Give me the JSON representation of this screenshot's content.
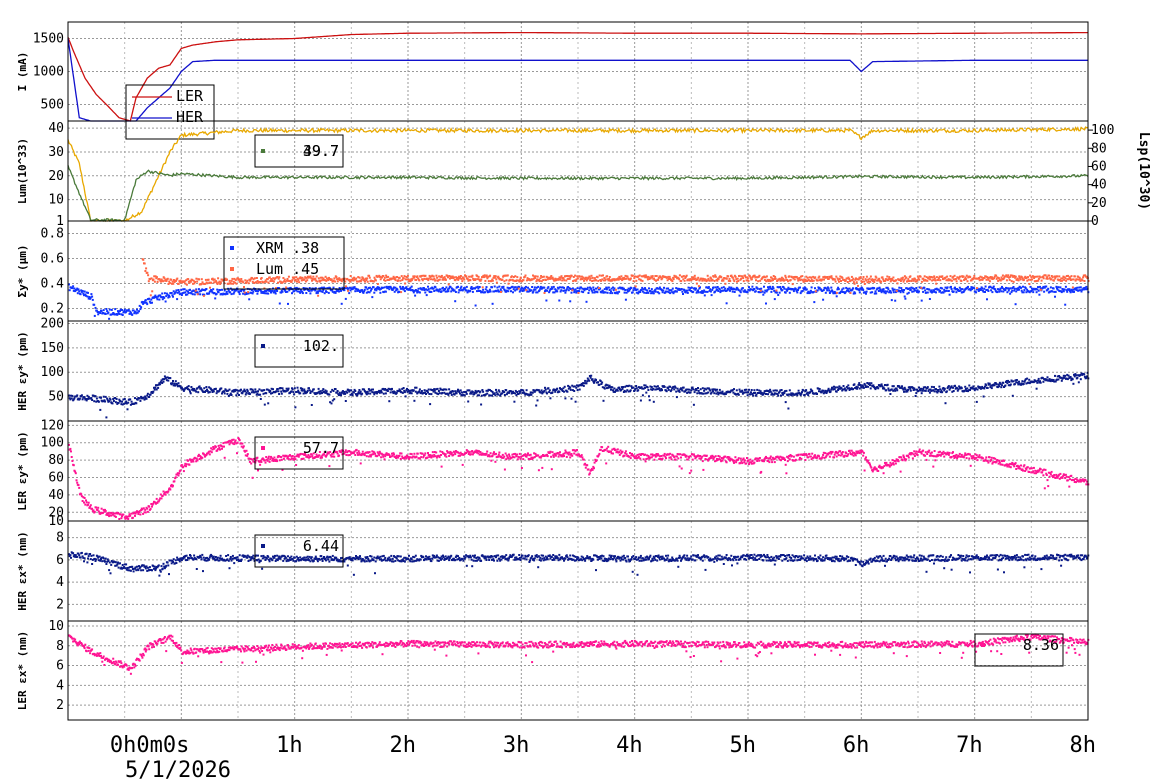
{
  "chart_data": [
    {
      "type": "line",
      "id": "current",
      "ylabel": "I (mA)",
      "yticks": [
        500,
        1000,
        1500
      ],
      "ylim": [
        250,
        1750
      ],
      "series": [
        {
          "name": "LER",
          "color": "#cc1111",
          "points": [
            [
              -1.0,
              1520
            ],
            [
              -0.95,
              1300
            ],
            [
              -0.85,
              900
            ],
            [
              -0.75,
              650
            ],
            [
              -0.65,
              480
            ],
            [
              -0.55,
              300
            ],
            [
              -0.45,
              250
            ],
            [
              -0.4,
              600
            ],
            [
              -0.3,
              900
            ],
            [
              -0.2,
              1050
            ],
            [
              -0.1,
              1100
            ],
            [
              0.0,
              1350
            ],
            [
              0.1,
              1400
            ],
            [
              0.3,
              1450
            ],
            [
              0.5,
              1480
            ],
            [
              1.0,
              1500
            ],
            [
              1.5,
              1560
            ],
            [
              2,
              1580
            ],
            [
              3,
              1590
            ],
            [
              4,
              1580
            ],
            [
              5,
              1580
            ],
            [
              6,
              1570
            ],
            [
              7,
              1580
            ],
            [
              8,
              1590
            ]
          ]
        },
        {
          "name": "HER",
          "color": "#1111cc",
          "points": [
            [
              -1.0,
              1500
            ],
            [
              -0.9,
              300
            ],
            [
              -0.8,
              250
            ],
            [
              -0.6,
              250
            ],
            [
              -0.4,
              250
            ],
            [
              -0.3,
              450
            ],
            [
              -0.2,
              600
            ],
            [
              -0.1,
              750
            ],
            [
              0.0,
              1000
            ],
            [
              0.1,
              1150
            ],
            [
              0.3,
              1170
            ],
            [
              1,
              1170
            ],
            [
              2,
              1170
            ],
            [
              3,
              1170
            ],
            [
              4,
              1170
            ],
            [
              5,
              1170
            ],
            [
              5.9,
              1170
            ],
            [
              6.0,
              1000
            ],
            [
              6.1,
              1150
            ],
            [
              7,
              1170
            ],
            [
              8,
              1170
            ]
          ]
        }
      ],
      "legend": [
        {
          "label": "LER",
          "color": "#cc1111"
        },
        {
          "label": "HER",
          "color": "#1111cc"
        }
      ]
    },
    {
      "type": "line",
      "id": "luminosity",
      "ylabel": "Lum(10^33)",
      "yticks": [
        1,
        10,
        20,
        30,
        40
      ],
      "ylim": [
        1,
        43
      ],
      "y2label": "Lsp(10^30)",
      "y2ticks": [
        0,
        20,
        40,
        60,
        80,
        100
      ],
      "series": [
        {
          "name": "Lum",
          "color": "#e8a800",
          "axis": "left",
          "points": [
            [
              -1.0,
              35
            ],
            [
              -0.9,
              25
            ],
            [
              -0.8,
              1
            ],
            [
              -0.5,
              1
            ],
            [
              -0.35,
              5
            ],
            [
              -0.2,
              20
            ],
            [
              -0.1,
              30
            ],
            [
              0.0,
              37
            ],
            [
              0.5,
              39
            ],
            [
              1,
              39
            ],
            [
              2,
              39
            ],
            [
              3,
              39
            ],
            [
              4,
              39
            ],
            [
              5,
              39
            ],
            [
              5.9,
              39
            ],
            [
              6.0,
              36
            ],
            [
              6.1,
              39
            ],
            [
              7,
              39
            ],
            [
              8,
              39.7
            ]
          ]
        },
        {
          "name": "Lsp",
          "color": "#4a7a3a",
          "axis": "right",
          "points": [
            [
              -1.0,
              60
            ],
            [
              -0.8,
              1
            ],
            [
              -0.5,
              1
            ],
            [
              -0.4,
              45
            ],
            [
              -0.3,
              55
            ],
            [
              -0.1,
              50
            ],
            [
              0.0,
              52
            ],
            [
              0.5,
              48
            ],
            [
              1,
              48
            ],
            [
              2,
              48
            ],
            [
              3,
              47
            ],
            [
              4,
              47
            ],
            [
              5,
              47
            ],
            [
              6,
              49
            ],
            [
              7,
              48
            ],
            [
              8,
              49.7
            ]
          ]
        }
      ],
      "legend": [
        {
          "label": "39.7",
          "color": "#e8a800"
        },
        {
          "label": "49.7",
          "color": "#4a7a3a"
        }
      ]
    },
    {
      "type": "scatter",
      "id": "sigma_y",
      "ylabel": "Σy* (µm)",
      "yticks": [
        0.2,
        0.4,
        0.6,
        0.8
      ],
      "ylim": [
        0.1,
        0.9
      ],
      "series": [
        {
          "name": "XRM",
          "color": "#1133ff",
          "base": 0.36,
          "points": [
            [
              -1.0,
              0.38
            ],
            [
              -0.8,
              0.3
            ],
            [
              -0.75,
              0.18
            ],
            [
              -0.4,
              0.18
            ],
            [
              -0.35,
              0.25
            ],
            [
              -0.2,
              0.3
            ],
            [
              0,
              0.34
            ],
            [
              1,
              0.35
            ],
            [
              2,
              0.36
            ],
            [
              3,
              0.36
            ],
            [
              4,
              0.35
            ],
            [
              5,
              0.36
            ],
            [
              6,
              0.35
            ],
            [
              7,
              0.36
            ],
            [
              8,
              0.36
            ]
          ]
        },
        {
          "name": "Lum",
          "color": "#ff6644",
          "points": [
            [
              -0.35,
              0.6
            ],
            [
              -0.3,
              0.45
            ],
            [
              0,
              0.42
            ],
            [
              1,
              0.44
            ],
            [
              2,
              0.45
            ],
            [
              3,
              0.45
            ],
            [
              4,
              0.45
            ],
            [
              5,
              0.45
            ],
            [
              6,
              0.44
            ],
            [
              7,
              0.45
            ],
            [
              8,
              0.45
            ]
          ]
        }
      ],
      "legend": [
        {
          "label": "XRM  .38",
          "color": "#1133ff"
        },
        {
          "label": "Lum  .45",
          "color": "#ff6644"
        }
      ]
    },
    {
      "type": "scatter",
      "id": "her_ey",
      "ylabel": "HER εy* (pm)",
      "yticks": [
        50,
        100,
        150,
        200
      ],
      "ylim": [
        0,
        205
      ],
      "series": [
        {
          "name": "HER εy",
          "color": "#0a1a88",
          "points": [
            [
              -1.0,
              50
            ],
            [
              -0.85,
              50
            ],
            [
              -0.45,
              40
            ],
            [
              -0.3,
              55
            ],
            [
              -0.15,
              90
            ],
            [
              0,
              70
            ],
            [
              0.5,
              60
            ],
            [
              1,
              65
            ],
            [
              1.5,
              60
            ],
            [
              2,
              65
            ],
            [
              2.5,
              60
            ],
            [
              3,
              60
            ],
            [
              3.5,
              70
            ],
            [
              3.6,
              90
            ],
            [
              3.8,
              65
            ],
            [
              4,
              70
            ],
            [
              4.5,
              65
            ],
            [
              5,
              60
            ],
            [
              5.5,
              60
            ],
            [
              6,
              75
            ],
            [
              6.5,
              65
            ],
            [
              7,
              70
            ],
            [
              7.5,
              85
            ],
            [
              8,
              95
            ]
          ]
        }
      ],
      "legend": [
        {
          "label": "102.",
          "color": "#0a1a88"
        }
      ]
    },
    {
      "type": "scatter",
      "id": "ler_ey",
      "ylabel": "LER εy* (pm)",
      "yticks": [
        10,
        20,
        40,
        60,
        80,
        100,
        120
      ],
      "ylim": [
        10,
        125
      ],
      "series": [
        {
          "name": "LER εy",
          "color": "#ff1493",
          "points": [
            [
              -1.0,
              100
            ],
            [
              -0.9,
              40
            ],
            [
              -0.8,
              25
            ],
            [
              -0.5,
              15
            ],
            [
              -0.3,
              25
            ],
            [
              -0.1,
              50
            ],
            [
              0,
              75
            ],
            [
              0.3,
              95
            ],
            [
              0.5,
              105
            ],
            [
              0.6,
              80
            ],
            [
              1,
              85
            ],
            [
              1.5,
              90
            ],
            [
              2,
              85
            ],
            [
              2.5,
              90
            ],
            [
              3,
              85
            ],
            [
              3.5,
              90
            ],
            [
              3.6,
              65
            ],
            [
              3.7,
              95
            ],
            [
              4,
              85
            ],
            [
              4.5,
              85
            ],
            [
              5,
              80
            ],
            [
              5.5,
              85
            ],
            [
              6,
              90
            ],
            [
              6.1,
              70
            ],
            [
              6.5,
              90
            ],
            [
              7,
              85
            ],
            [
              7.5,
              70
            ],
            [
              8,
              55
            ]
          ]
        }
      ],
      "legend": [
        {
          "label": "57.7",
          "color": "#ff1493"
        }
      ]
    },
    {
      "type": "scatter",
      "id": "her_ex",
      "ylabel": "HER εx* (nm)",
      "yticks": [
        2,
        4,
        6,
        8
      ],
      "ylim": [
        0.5,
        9.5
      ],
      "series": [
        {
          "name": "HER εx",
          "color": "#0a1a88",
          "points": [
            [
              -1.0,
              6.5
            ],
            [
              -0.85,
              6.5
            ],
            [
              -0.45,
              5.3
            ],
            [
              -0.2,
              5.4
            ],
            [
              0,
              6.3
            ],
            [
              1,
              6.2
            ],
            [
              2,
              6.2
            ],
            [
              3,
              6.3
            ],
            [
              4,
              6.2
            ],
            [
              5,
              6.3
            ],
            [
              5.9,
              6.2
            ],
            [
              6.0,
              5.7
            ],
            [
              6.1,
              6.2
            ],
            [
              7,
              6.3
            ],
            [
              8,
              6.3
            ]
          ]
        }
      ],
      "legend": [
        {
          "label": "6.44",
          "color": "#0a1a88"
        }
      ]
    },
    {
      "type": "scatter",
      "id": "ler_ex",
      "ylabel": "LER εx* (nm)",
      "yticks": [
        2,
        4,
        6,
        8,
        10
      ],
      "ylim": [
        0.5,
        10.5
      ],
      "series": [
        {
          "name": "LER εx",
          "color": "#ff1493",
          "points": [
            [
              -1.0,
              9
            ],
            [
              -0.8,
              7.5
            ],
            [
              -0.6,
              6.5
            ],
            [
              -0.45,
              5.8
            ],
            [
              -0.3,
              8
            ],
            [
              -0.1,
              9
            ],
            [
              0,
              7.5
            ],
            [
              1,
              8
            ],
            [
              2,
              8.3
            ],
            [
              3,
              8.2
            ],
            [
              4,
              8.3
            ],
            [
              5,
              8.2
            ],
            [
              6,
              8.2
            ],
            [
              7,
              8.3
            ],
            [
              7.5,
              9
            ],
            [
              8,
              8.4
            ]
          ]
        }
      ],
      "legend": [
        {
          "label": "8.36",
          "color": "#ff1493"
        }
      ]
    }
  ],
  "x_axis": {
    "range_hours": [
      -1.0,
      8.0
    ],
    "ticks": [
      {
        "hour": 0,
        "label": "0h0m0s"
      },
      {
        "hour": 1,
        "label": "1h"
      },
      {
        "hour": 2,
        "label": "2h"
      },
      {
        "hour": 3,
        "label": "3h"
      },
      {
        "hour": 4,
        "label": "4h"
      },
      {
        "hour": 5,
        "label": "5h"
      },
      {
        "hour": 6,
        "label": "6h"
      },
      {
        "hour": 7,
        "label": "7h"
      },
      {
        "hour": 8,
        "label": "8h"
      }
    ],
    "date": "5/1/2026"
  }
}
